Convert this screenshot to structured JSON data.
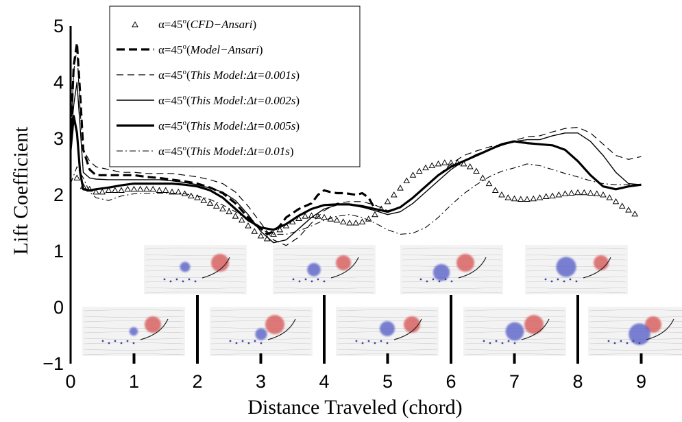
{
  "chart_data": {
    "type": "line",
    "xlabel": "Distance Traveled (chord)",
    "ylabel": "Lift Coefficient",
    "xlim": [
      0,
      9.2
    ],
    "ylim": [
      -1,
      5
    ],
    "xticks": [
      "0",
      "1",
      "2",
      "3",
      "4",
      "5",
      "6",
      "7",
      "8",
      "9"
    ],
    "yticks": [
      "−1",
      "0",
      "1",
      "2",
      "3",
      "4",
      "5"
    ],
    "grid": false,
    "legend_position": "top-left",
    "series": [
      {
        "name": "α=45°(CFD−Ansari)",
        "style": "triangles",
        "x": [
          0.1,
          0.2,
          0.3,
          0.4,
          0.5,
          0.6,
          0.7,
          0.8,
          0.9,
          1.0,
          1.1,
          1.2,
          1.3,
          1.4,
          1.5,
          1.6,
          1.7,
          1.8,
          1.9,
          2.0,
          2.1,
          2.2,
          2.3,
          2.4,
          2.5,
          2.6,
          2.7,
          2.8,
          2.9,
          3.0,
          3.1,
          3.2,
          3.3,
          3.4,
          3.5,
          3.6,
          3.7,
          3.8,
          3.9,
          4.0,
          4.1,
          4.2,
          4.3,
          4.4,
          4.5,
          4.6,
          4.7,
          4.8,
          4.9,
          5.0,
          5.1,
          5.2,
          5.3,
          5.4,
          5.5,
          5.6,
          5.7,
          5.8,
          5.9,
          6.0,
          6.1,
          6.2,
          6.3,
          6.4,
          6.5,
          6.6,
          6.7,
          6.8,
          6.9,
          7.0,
          7.1,
          7.2,
          7.3,
          7.4,
          7.5,
          7.6,
          7.7,
          7.8,
          7.9,
          8.0,
          8.1,
          8.2,
          8.3,
          8.4,
          8.5,
          8.6,
          8.7,
          8.8,
          8.9
        ],
        "y": [
          2.3,
          2.15,
          2.1,
          2.05,
          2.05,
          2.08,
          2.08,
          2.08,
          2.1,
          2.1,
          2.1,
          2.1,
          2.1,
          2.08,
          2.08,
          2.05,
          2.05,
          2.02,
          1.98,
          1.95,
          1.9,
          1.85,
          1.8,
          1.75,
          1.7,
          1.62,
          1.55,
          1.45,
          1.35,
          1.27,
          1.22,
          1.3,
          1.38,
          1.45,
          1.52,
          1.58,
          1.62,
          1.63,
          1.62,
          1.6,
          1.57,
          1.55,
          1.52,
          1.5,
          1.5,
          1.52,
          1.57,
          1.65,
          1.75,
          1.88,
          2.0,
          2.12,
          2.25,
          2.35,
          2.42,
          2.48,
          2.52,
          2.55,
          2.57,
          2.57,
          2.57,
          2.55,
          2.5,
          2.42,
          2.3,
          2.2,
          2.08,
          2.0,
          1.95,
          1.93,
          1.92,
          1.92,
          1.93,
          1.95,
          1.97,
          1.98,
          2.0,
          2.02,
          2.03,
          2.04,
          2.04,
          2.03,
          2.02,
          2.0,
          1.95,
          1.88,
          1.8,
          1.73,
          1.66
        ]
      },
      {
        "name": "α=45°(Model−Ansari)",
        "style": "thick-dashed",
        "x": [
          0.0,
          0.05,
          0.1,
          0.15,
          0.2,
          0.3,
          0.4,
          0.6,
          0.8,
          1.0,
          1.2,
          1.4,
          1.6,
          1.8,
          2.0,
          2.2,
          2.4,
          2.6,
          2.8,
          3.0,
          3.1,
          3.2,
          3.3,
          3.4,
          3.6,
          3.8,
          3.9,
          4.0,
          4.1,
          4.2,
          4.3,
          4.4,
          4.5,
          4.6,
          4.7,
          4.8
        ],
        "y": [
          3.0,
          4.3,
          4.7,
          3.8,
          2.8,
          2.45,
          2.35,
          2.35,
          2.35,
          2.35,
          2.32,
          2.3,
          2.27,
          2.24,
          2.2,
          2.13,
          2.03,
          1.85,
          1.6,
          1.4,
          1.3,
          1.35,
          1.45,
          1.6,
          1.75,
          1.85,
          2.0,
          2.08,
          2.05,
          2.03,
          2.03,
          2.02,
          2.0,
          2.03,
          1.95,
          1.75
        ]
      },
      {
        "name": "α=45°(This Model:Δt=0.001s)",
        "style": "thin-dashed",
        "x": [
          0.0,
          0.05,
          0.1,
          0.15,
          0.2,
          0.3,
          0.4,
          0.6,
          0.8,
          1.0,
          1.2,
          1.4,
          1.6,
          1.8,
          2.0,
          2.2,
          2.4,
          2.6,
          2.8,
          3.0,
          3.2,
          3.4,
          3.6,
          3.8,
          4.0,
          4.2,
          4.4,
          4.6,
          4.8,
          5.0,
          5.2,
          5.4,
          5.6,
          5.8,
          6.0,
          6.2,
          6.4,
          6.6,
          6.8,
          7.0,
          7.2,
          7.4,
          7.6,
          7.8,
          8.0,
          8.2,
          8.4,
          8.6,
          8.8,
          9.0
        ],
        "y": [
          3.0,
          4.2,
          4.6,
          3.5,
          2.8,
          2.6,
          2.5,
          2.45,
          2.4,
          2.4,
          2.38,
          2.38,
          2.38,
          2.35,
          2.32,
          2.27,
          2.2,
          2.05,
          1.8,
          1.5,
          1.2,
          1.1,
          1.25,
          1.5,
          1.72,
          1.85,
          1.88,
          1.88,
          1.82,
          1.72,
          1.78,
          1.95,
          2.15,
          2.35,
          2.55,
          2.7,
          2.78,
          2.85,
          2.9,
          2.97,
          3.03,
          3.05,
          3.12,
          3.18,
          3.2,
          3.1,
          2.9,
          2.7,
          2.63,
          2.68
        ]
      },
      {
        "name": "α=45°(This Model:Δt=0.002s)",
        "style": "thin-solid",
        "x": [
          0.0,
          0.05,
          0.1,
          0.15,
          0.2,
          0.3,
          0.4,
          0.6,
          0.8,
          1.0,
          1.2,
          1.4,
          1.6,
          1.8,
          2.0,
          2.2,
          2.4,
          2.6,
          2.8,
          3.0,
          3.2,
          3.4,
          3.6,
          3.8,
          4.0,
          4.2,
          4.4,
          4.6,
          4.8,
          5.0,
          5.2,
          5.4,
          5.6,
          5.8,
          6.0,
          6.2,
          6.4,
          6.6,
          6.8,
          7.0,
          7.2,
          7.4,
          7.6,
          7.8,
          8.0,
          8.2,
          8.4,
          8.6,
          8.8,
          9.0
        ],
        "y": [
          3.0,
          3.6,
          4.0,
          3.2,
          2.4,
          2.3,
          2.28,
          2.27,
          2.27,
          2.27,
          2.27,
          2.27,
          2.25,
          2.22,
          2.18,
          2.12,
          2.05,
          1.9,
          1.65,
          1.35,
          1.15,
          1.2,
          1.4,
          1.6,
          1.75,
          1.82,
          1.82,
          1.78,
          1.72,
          1.65,
          1.7,
          1.85,
          2.05,
          2.25,
          2.45,
          2.6,
          2.72,
          2.8,
          2.88,
          2.95,
          2.98,
          2.98,
          3.05,
          3.1,
          3.1,
          2.95,
          2.7,
          2.4,
          2.2,
          2.18
        ]
      },
      {
        "name": "α=45°(This Model:Δt=0.005s)",
        "style": "thick-solid",
        "x": [
          0.0,
          0.05,
          0.1,
          0.15,
          0.2,
          0.3,
          0.4,
          0.6,
          0.8,
          1.0,
          1.2,
          1.4,
          1.6,
          1.8,
          2.0,
          2.2,
          2.4,
          2.6,
          2.8,
          3.0,
          3.2,
          3.4,
          3.6,
          3.8,
          4.0,
          4.2,
          4.4,
          4.6,
          4.8,
          5.0,
          5.2,
          5.4,
          5.6,
          5.8,
          6.0,
          6.2,
          6.4,
          6.6,
          6.8,
          7.0,
          7.2,
          7.4,
          7.6,
          7.8,
          8.0,
          8.2,
          8.4,
          8.6,
          8.8,
          9.0
        ],
        "y": [
          2.8,
          3.4,
          3.1,
          2.4,
          2.1,
          2.08,
          2.1,
          2.13,
          2.17,
          2.2,
          2.2,
          2.2,
          2.2,
          2.18,
          2.15,
          2.08,
          1.95,
          1.75,
          1.55,
          1.42,
          1.38,
          1.48,
          1.63,
          1.75,
          1.82,
          1.83,
          1.83,
          1.8,
          1.75,
          1.7,
          1.78,
          1.95,
          2.15,
          2.35,
          2.5,
          2.6,
          2.7,
          2.8,
          2.9,
          2.95,
          2.92,
          2.9,
          2.88,
          2.8,
          2.6,
          2.35,
          2.15,
          2.1,
          2.15,
          2.18
        ]
      },
      {
        "name": "α=45°(This Model:Δt=0.01s)",
        "style": "dash-dot",
        "x": [
          0.0,
          0.1,
          0.2,
          0.3,
          0.4,
          0.6,
          0.8,
          1.0,
          1.2,
          1.4,
          1.6,
          1.8,
          2.0,
          2.2,
          2.4,
          2.6,
          2.8,
          3.0,
          3.2,
          3.4,
          3.6,
          3.8,
          4.0,
          4.2,
          4.4,
          4.6,
          4.8,
          5.0,
          5.2,
          5.4,
          5.6,
          5.8,
          6.0,
          6.2,
          6.4,
          6.6,
          6.8,
          7.0,
          7.2,
          7.4,
          7.6,
          7.8,
          8.0,
          8.2,
          8.4,
          8.6,
          8.8,
          9.0
        ],
        "y": [
          2.2,
          2.5,
          2.3,
          2.05,
          1.95,
          1.9,
          1.98,
          2.02,
          2.03,
          2.03,
          2.03,
          2.02,
          1.98,
          1.92,
          1.82,
          1.7,
          1.55,
          1.38,
          1.3,
          1.3,
          1.36,
          1.45,
          1.55,
          1.62,
          1.65,
          1.6,
          1.5,
          1.38,
          1.3,
          1.32,
          1.42,
          1.6,
          1.82,
          2.02,
          2.18,
          2.32,
          2.42,
          2.48,
          2.55,
          2.52,
          2.45,
          2.38,
          2.32,
          2.25,
          2.2,
          2.18,
          2.18,
          2.18
        ]
      }
    ]
  }
}
